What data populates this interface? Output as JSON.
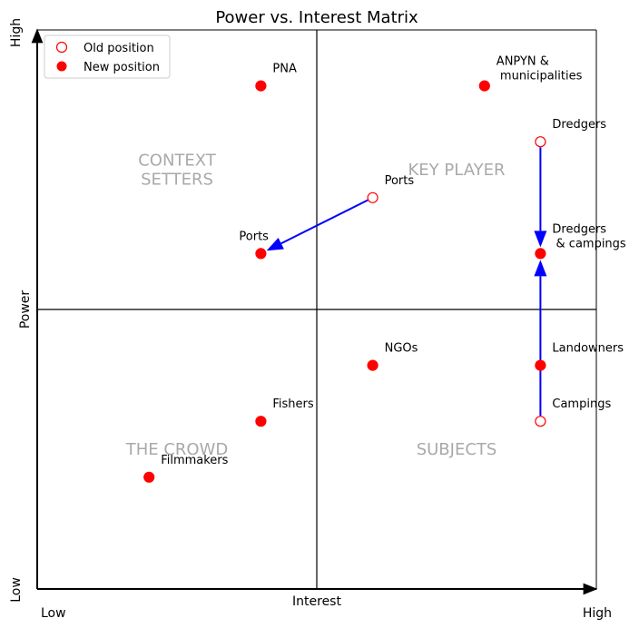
{
  "chart_data": {
    "type": "scatter",
    "title": "Power vs. Interest Matrix",
    "xlabel": "Interest",
    "ylabel": "Power",
    "xlim": [
      0,
      10
    ],
    "ylim": [
      0,
      10
    ],
    "x_tick_labels": [
      "Low",
      "High"
    ],
    "y_tick_labels": [
      "Low",
      "High"
    ],
    "grid": false,
    "quadrant_divider": {
      "x": 5,
      "y": 5
    },
    "quadrant_labels": [
      {
        "text": "CONTEXT\nSETTERS",
        "x": 2.5,
        "y": 7.5
      },
      {
        "text": "KEY PLAYER",
        "x": 7.5,
        "y": 7.5
      },
      {
        "text": "THE CROWD",
        "x": 2.5,
        "y": 2.5
      },
      {
        "text": "SUBJECTS",
        "x": 7.5,
        "y": 2.5
      }
    ],
    "legend": {
      "placement": "top-left",
      "entries": [
        {
          "label": "Old position",
          "marker": "open-circle"
        },
        {
          "label": "New position",
          "marker": "filled-circle"
        }
      ]
    },
    "series": [
      {
        "name": "Old position",
        "points": [
          {
            "label": "Ports",
            "x": 6,
            "y": 7
          },
          {
            "label": "Dredgers",
            "x": 9,
            "y": 8
          },
          {
            "label": "Campings",
            "x": 9,
            "y": 3
          }
        ]
      },
      {
        "name": "New position",
        "points": [
          {
            "label": "PNA",
            "x": 4,
            "y": 9
          },
          {
            "label": "ANPYN &\n municipalities",
            "x": 8,
            "y": 9
          },
          {
            "label": "Ports",
            "x": 4,
            "y": 6
          },
          {
            "label": "Dredgers\n & campings",
            "x": 9,
            "y": 6
          },
          {
            "label": "NGOs",
            "x": 6,
            "y": 4
          },
          {
            "label": "Landowners",
            "x": 9,
            "y": 4
          },
          {
            "label": "Fishers",
            "x": 4,
            "y": 3
          },
          {
            "label": "Filmmakers",
            "x": 2,
            "y": 2
          }
        ]
      }
    ],
    "arrows": [
      {
        "from": [
          6,
          7
        ],
        "to": [
          4,
          6
        ]
      },
      {
        "from": [
          9,
          8
        ],
        "to": [
          9,
          6
        ]
      },
      {
        "from": [
          9,
          3
        ],
        "to": [
          9,
          6
        ]
      }
    ],
    "colors": {
      "marker": "#ff0000",
      "arrow": "#0000ff",
      "quadrant_label": "#a9a9a9"
    }
  }
}
